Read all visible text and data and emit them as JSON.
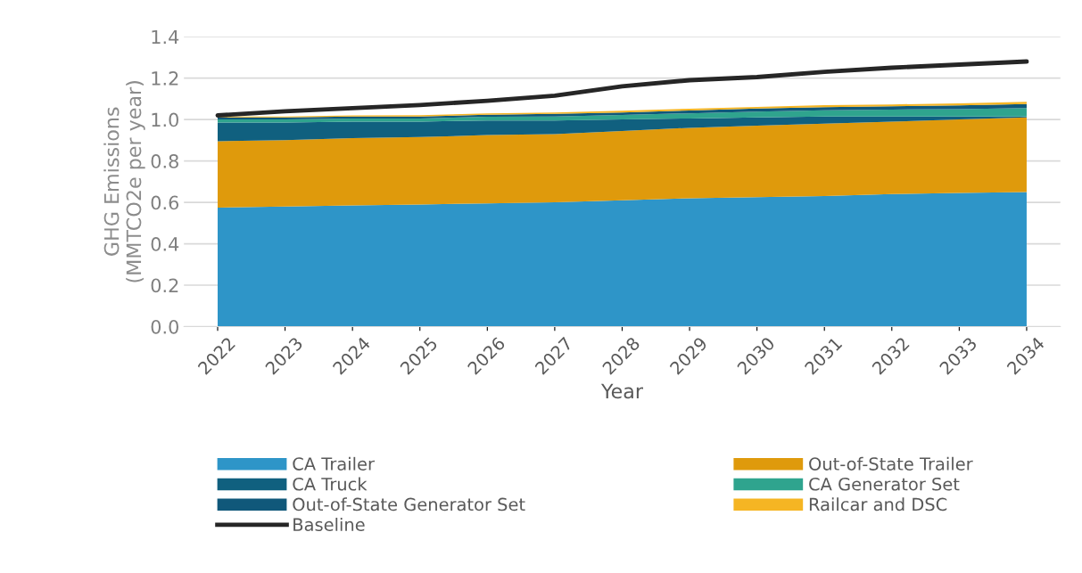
{
  "chart_data": {
    "type": "area",
    "stacked": true,
    "xlabel": "Year",
    "ylabel": "GHG Emissions\n(MMTCO2e per year)",
    "categories": [
      "2022",
      "2023",
      "2024",
      "2025",
      "2026",
      "2027",
      "2028",
      "2029",
      "2030",
      "2031",
      "2032",
      "2033",
      "2034"
    ],
    "series": [
      {
        "name": "CA Trailer",
        "color": "#2e95c8",
        "values": [
          0.575,
          0.58,
          0.585,
          0.59,
          0.595,
          0.6,
          0.61,
          0.62,
          0.625,
          0.63,
          0.64,
          0.645,
          0.65
        ]
      },
      {
        "name": "Out-of-State Trailer",
        "color": "#df9a0c",
        "values": [
          0.32,
          0.32,
          0.325,
          0.325,
          0.33,
          0.33,
          0.335,
          0.34,
          0.345,
          0.35,
          0.35,
          0.355,
          0.36
        ]
      },
      {
        "name": "CA Truck",
        "color": "#10607f",
        "values": [
          0.09,
          0.085,
          0.08,
          0.075,
          0.07,
          0.065,
          0.055,
          0.045,
          0.04,
          0.035,
          0.025,
          0.015,
          0.005
        ]
      },
      {
        "name": "CA Generator Set",
        "color": "#2fa48e",
        "values": [
          0.015,
          0.015,
          0.015,
          0.015,
          0.018,
          0.02,
          0.022,
          0.025,
          0.028,
          0.03,
          0.033,
          0.035,
          0.04
        ]
      },
      {
        "name": "Out-of-State Generator Set",
        "color": "#10587a",
        "values": [
          0.01,
          0.01,
          0.01,
          0.01,
          0.01,
          0.012,
          0.012,
          0.014,
          0.015,
          0.015,
          0.016,
          0.018,
          0.02
        ]
      },
      {
        "name": "Railcar and DSC",
        "color": "#f5b523",
        "values": [
          0.005,
          0.005,
          0.005,
          0.006,
          0.006,
          0.007,
          0.008,
          0.008,
          0.008,
          0.009,
          0.009,
          0.01,
          0.01
        ]
      },
      {
        "name": "Baseline",
        "type": "line",
        "color": "#262626",
        "values": [
          1.02,
          1.04,
          1.055,
          1.07,
          1.09,
          1.115,
          1.16,
          1.19,
          1.205,
          1.23,
          1.25,
          1.265,
          1.28
        ]
      }
    ],
    "ylim": [
      0,
      1.4
    ],
    "yticks": [
      {
        "value": 0,
        "label": "0.0"
      },
      {
        "value": 0.2,
        "label": "0.2"
      },
      {
        "value": 0.4,
        "label": "0.4"
      },
      {
        "value": 0.6,
        "label": "0.6"
      },
      {
        "value": 0.8,
        "label": "0.8"
      },
      {
        "value": 1,
        "label": "1.0"
      },
      {
        "value": 1.2,
        "label": "1.2"
      },
      {
        "value": 1.4,
        "label": "1.4"
      }
    ],
    "grid": "y",
    "legend": "bottom"
  }
}
